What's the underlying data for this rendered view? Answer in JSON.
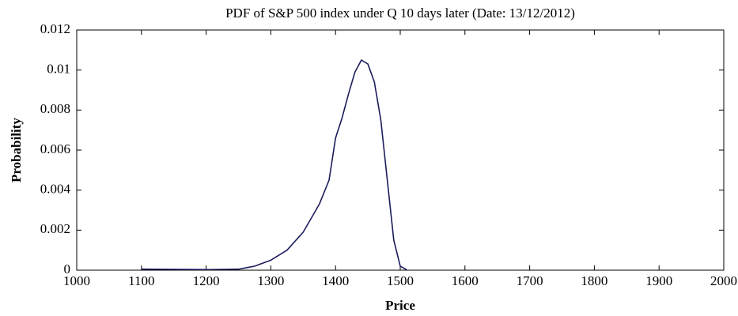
{
  "chart_data": {
    "type": "line",
    "title": "PDF of S&P 500 index under Q 10 days later (Date: 13/12/2012)",
    "xlabel": "Price",
    "ylabel": "Probability",
    "x": [
      1100,
      1150,
      1200,
      1250,
      1275,
      1300,
      1325,
      1350,
      1375,
      1390,
      1400,
      1410,
      1420,
      1430,
      1440,
      1450,
      1460,
      1470,
      1480,
      1490,
      1500,
      1510
    ],
    "series": [
      {
        "name": "PDF",
        "color": "#1c1c5c",
        "values": [
          5e-05,
          4e-05,
          3e-05,
          5e-05,
          0.0002,
          0.0005,
          0.001,
          0.0019,
          0.0033,
          0.0045,
          0.0066,
          0.0076,
          0.0088,
          0.0099,
          0.0105,
          0.0103,
          0.0094,
          0.0075,
          0.0045,
          0.0015,
          0.0002,
          2e-05
        ]
      }
    ],
    "xlim": [
      1000,
      2000
    ],
    "xticks": [
      1000,
      1100,
      1200,
      1300,
      1400,
      1500,
      1600,
      1700,
      1800,
      1900,
      2000
    ],
    "ylim": [
      0,
      0.012
    ],
    "yticks": [
      0,
      0.002,
      0.004,
      0.006,
      0.008,
      0.01,
      0.012
    ],
    "grid": false
  }
}
